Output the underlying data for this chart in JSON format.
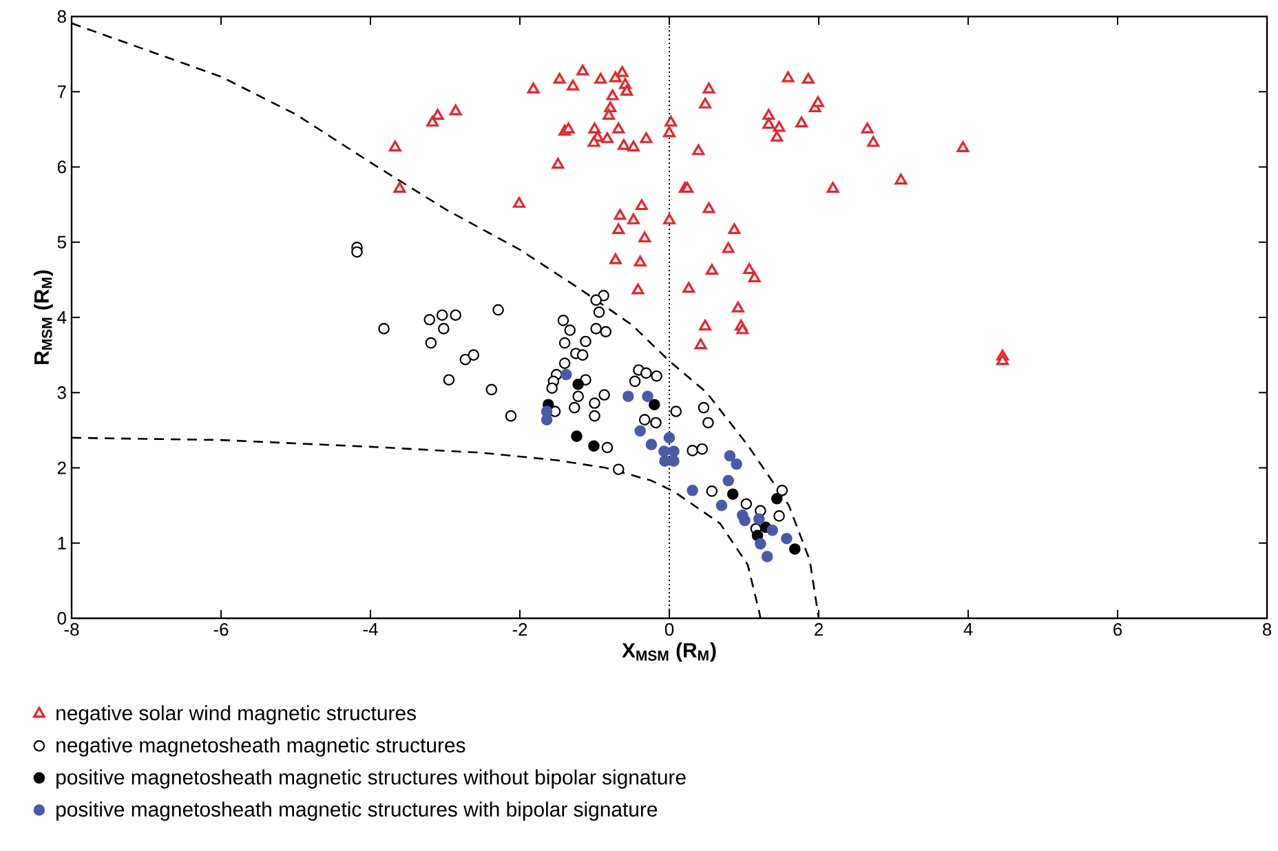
{
  "chart_data": {
    "type": "scatter",
    "xlabel": "X$_{MSM}$ (R$_{M}$)",
    "ylabel": "R$_{MSM}$ (R$_{M}$)",
    "xlim": [
      -8,
      8
    ],
    "ylim": [
      0,
      8
    ],
    "xticks": [
      -8,
      -6,
      -4,
      -2,
      0,
      2,
      4,
      6,
      8
    ],
    "yticks": [
      0,
      1,
      2,
      3,
      4,
      5,
      6,
      7,
      8
    ],
    "grid": false,
    "legend": "bottom",
    "ref_lines": [
      {
        "axis": "x",
        "value": 0,
        "color": "#000000",
        "line_style": "dotted"
      }
    ],
    "series": [
      {
        "name": "negative solar wind magnetic structures",
        "marker": "triangle-open",
        "color": "#e8242b",
        "x": [
          -3.67,
          -3.61,
          -3.17,
          -3.1,
          -2.86,
          -2.01,
          -1.82,
          -1.49,
          -1.47,
          -1.4,
          -1.29,
          -1.35,
          -1.16,
          -0.92,
          -0.72,
          -0.63,
          -0.59,
          -0.57,
          -0.76,
          -0.79,
          -0.81,
          -1.0,
          -0.96,
          -0.83,
          -0.68,
          -0.61,
          -0.48,
          -0.31,
          -1.01,
          0.02,
          0.0,
          0.39,
          0.21,
          0.24,
          0.53,
          0.48,
          0.0,
          0.53,
          -0.66,
          -0.68,
          -0.48,
          -0.37,
          -0.33,
          -0.72,
          -0.39,
          -0.42,
          0.26,
          0.57,
          0.87,
          0.79,
          1.07,
          1.14,
          0.92,
          0.96,
          0.98,
          0.48,
          0.42,
          1.33,
          1.59,
          1.86,
          1.33,
          1.47,
          1.44,
          1.77,
          1.95,
          1.99,
          2.65,
          2.73,
          3.93,
          2.19,
          3.1,
          4.46,
          4.46
        ],
        "values": [
          6.26,
          5.71,
          6.59,
          6.68,
          6.74,
          5.51,
          7.03,
          6.03,
          7.16,
          6.47,
          7.07,
          6.5,
          7.27,
          7.16,
          7.18,
          7.25,
          7.09,
          7.0,
          6.94,
          6.78,
          6.68,
          6.5,
          6.39,
          6.37,
          6.5,
          6.28,
          6.26,
          6.37,
          6.32,
          6.59,
          6.45,
          6.21,
          5.71,
          5.71,
          7.03,
          6.83,
          5.29,
          5.44,
          5.35,
          5.16,
          5.29,
          5.48,
          5.05,
          4.76,
          4.73,
          4.36,
          4.38,
          4.62,
          5.16,
          4.91,
          4.63,
          4.52,
          4.12,
          3.88,
          3.83,
          3.88,
          3.63,
          6.68,
          7.18,
          7.16,
          6.56,
          6.52,
          6.39,
          6.58,
          6.78,
          6.85,
          6.5,
          6.32,
          6.25,
          5.71,
          5.82,
          3.48,
          3.42
        ]
      },
      {
        "name": "negative magnetosheath magnetic structures",
        "marker": "circle-open",
        "color": "#000000",
        "x": [
          -4.18,
          -4.18,
          -3.82,
          -3.21,
          -3.04,
          -2.86,
          -3.02,
          -3.19,
          -2.29,
          -2.73,
          -2.62,
          -2.95,
          -2.38,
          -2.12,
          -1.42,
          -1.33,
          -1.4,
          -1.12,
          -1.25,
          -1.16,
          -1.4,
          -1.51,
          -1.55,
          -1.57,
          -1.53,
          -1.12,
          -1.22,
          -1.27,
          -0.87,
          -1.0,
          -1.0,
          -0.83,
          -0.68,
          -0.88,
          -0.98,
          -0.94,
          -0.98,
          -0.85,
          -0.41,
          -0.31,
          -0.17,
          -0.46,
          -0.33,
          -0.18,
          0.09,
          0.46,
          0.52,
          0.31,
          0.44,
          0.57,
          1.03,
          1.22,
          1.51,
          1.47,
          1.16
        ],
        "values": [
          4.93,
          4.87,
          3.85,
          3.97,
          4.03,
          4.03,
          3.85,
          3.66,
          4.1,
          3.44,
          3.5,
          3.17,
          3.04,
          2.69,
          3.96,
          3.83,
          3.66,
          3.68,
          3.52,
          3.5,
          3.39,
          3.24,
          3.15,
          3.06,
          2.75,
          3.17,
          2.95,
          2.8,
          2.97,
          2.86,
          2.69,
          2.27,
          1.98,
          4.29,
          4.23,
          4.07,
          3.85,
          3.81,
          3.3,
          3.26,
          3.22,
          3.15,
          2.64,
          2.6,
          2.75,
          2.8,
          2.6,
          2.23,
          2.25,
          1.69,
          1.52,
          1.43,
          1.7,
          1.36,
          1.19
        ]
      },
      {
        "name": "positive magnetosheath magnetic structures without bipolar signature",
        "marker": "circle",
        "color": "#000000",
        "x": [
          -1.22,
          -1.62,
          -1.24,
          -1.01,
          -0.2,
          0.85,
          1.44,
          1.29,
          1.18,
          1.68
        ],
        "values": [
          3.11,
          2.84,
          2.42,
          2.29,
          2.84,
          1.65,
          1.59,
          1.21,
          1.1,
          0.92
        ]
      },
      {
        "name": "positive magnetosheath magnetic structures with bipolar signature",
        "marker": "circle",
        "color": "#4a5aa8",
        "x": [
          -1.38,
          -1.64,
          -1.64,
          -0.55,
          -0.29,
          -0.39,
          -0.24,
          0.0,
          -0.07,
          0.06,
          -0.06,
          0.06,
          0.31,
          0.7,
          0.79,
          0.81,
          0.9,
          0.98,
          1.01,
          1.2,
          1.38,
          1.22,
          1.31,
          1.57
        ],
        "values": [
          3.24,
          2.75,
          2.64,
          2.95,
          2.95,
          2.49,
          2.31,
          2.4,
          2.22,
          2.22,
          2.09,
          2.09,
          1.7,
          1.5,
          1.83,
          2.16,
          2.05,
          1.37,
          1.3,
          1.32,
          1.17,
          0.99,
          0.82,
          1.06
        ]
      },
      {
        "type": "line",
        "marker": "none",
        "line_style": "dashed",
        "color": "#000000",
        "x": [
          -8,
          -6,
          -5,
          -4,
          -3,
          -2,
          -1.2,
          -0.5,
          0,
          0.5,
          1.05,
          1.6,
          1.88,
          2.0
        ],
        "values": [
          7.91,
          7.2,
          6.7,
          6.06,
          5.44,
          4.9,
          4.38,
          3.9,
          3.42,
          3.0,
          2.3,
          1.5,
          0.77,
          0
        ]
      },
      {
        "type": "line",
        "marker": "none",
        "line_style": "dashed",
        "color": "#000000",
        "x": [
          -8,
          -6,
          -4,
          -2.5,
          -1.5,
          -0.85,
          -0.24,
          0.07,
          0.68,
          1.05,
          1.2,
          1.22
        ],
        "values": [
          2.4,
          2.37,
          2.28,
          2.2,
          2.1,
          2.0,
          1.83,
          1.68,
          1.26,
          0.71,
          0.1,
          0
        ]
      }
    ]
  }
}
